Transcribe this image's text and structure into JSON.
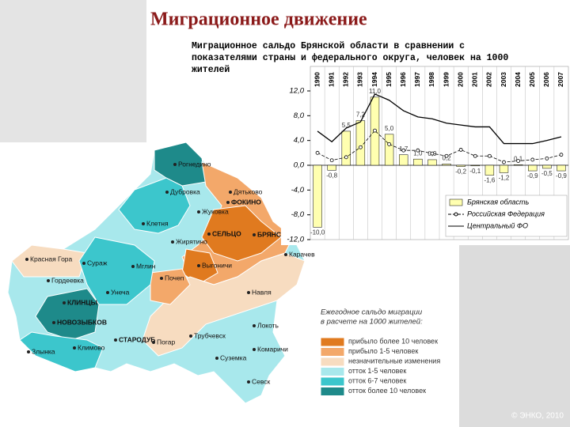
{
  "title": "Миграционное движение",
  "subtitle": [
    "Миграционное сальдо Брянской области в сравнении с",
    "показателями страны и федерального округа, человек на 1000",
    "жителей"
  ],
  "chart_data": {
    "type": "bar",
    "categories": [
      "1990",
      "1991",
      "1992",
      "1993",
      "1994",
      "1995",
      "1996",
      "1997",
      "1998",
      "1999",
      "2000",
      "2001",
      "2002",
      "2003",
      "2004",
      "2005",
      "2006",
      "2007"
    ],
    "series": [
      {
        "name": "Брянская область",
        "type": "bar",
        "color": "#ffffb0",
        "values": [
          -10.0,
          -0.8,
          5.5,
          7.2,
          11.0,
          5.0,
          1.7,
          1.0,
          0.9,
          0.2,
          -0.2,
          -0.1,
          -1.6,
          -1.2,
          0.1,
          -0.9,
          -0.5,
          -0.9
        ],
        "value_labels": [
          "-10,0",
          "-0,8",
          "5,5",
          "7,2",
          "11,0",
          "5,0",
          "1,7",
          "1,0",
          "0,9",
          "0,2",
          "-0,2",
          "-0,1",
          "-1,6",
          "-1,2",
          "0,1",
          "-0,9",
          "-0,5",
          "-0,9"
        ]
      },
      {
        "name": "Российская Федерация",
        "type": "line",
        "style": "dashed",
        "marker": "circle",
        "color": "#000000",
        "values": [
          2.0,
          0.8,
          1.3,
          2.9,
          5.6,
          3.4,
          2.4,
          2.4,
          1.9,
          1.5,
          2.5,
          1.5,
          1.5,
          0.5,
          0.7,
          0.9,
          1.1,
          1.7
        ]
      },
      {
        "name": "Центральный ФО",
        "type": "line",
        "style": "solid",
        "color": "#000000",
        "values": [
          5.5,
          3.8,
          6.0,
          7.0,
          11.5,
          10.5,
          8.8,
          7.8,
          7.5,
          6.8,
          6.5,
          6.2,
          6.2,
          3.5,
          3.5,
          3.5,
          4.0,
          4.6
        ]
      }
    ],
    "ylim": [
      -12,
      12
    ],
    "yticks": [
      {
        "value": 12,
        "label": "12,0"
      },
      {
        "value": 8,
        "label": "8,0"
      },
      {
        "value": 4,
        "label": "4,0"
      },
      {
        "value": 0,
        "label": "0,0"
      },
      {
        "value": -4,
        "label": "-4,0"
      },
      {
        "value": -8,
        "label": "-8,0"
      },
      {
        "value": -12,
        "label": "-12,0"
      }
    ],
    "grid": false
  },
  "map": {
    "districts": [
      "Рогнедино",
      "Дубровка",
      "Дятьково",
      "ФОКИНО",
      "Жуковка",
      "Клетня",
      "БРЯНСК",
      "СЕЛЬЦО",
      "Жирятино",
      "Красная Гора",
      "Сураж",
      "Мглин",
      "Выгоничи",
      "Карачев",
      "Гордеевка",
      "Почеп",
      "Унеча",
      "Навля",
      "КЛИНЦЫ",
      "НОВОЗЫБКОВ",
      "СТАРОДУБ",
      "Трубчевск",
      "Погар",
      "Локоть",
      "Суземка",
      "Комаричи",
      "Злынка",
      "Климово",
      "Севск"
    ],
    "legend": {
      "title": [
        "Ежегодное сальдо миграции",
        "в расчете на 1000 жителей:"
      ],
      "items": [
        {
          "label": "прибыло более 10 человек",
          "color": "#e07a1f"
        },
        {
          "label": "прибыло 1-5 человек",
          "color": "#f3a86a"
        },
        {
          "label": "незначительные изменения",
          "color": "#f7dcc0"
        },
        {
          "label": "отток 1-5 человек",
          "color": "#a8e8ec"
        },
        {
          "label": "отток 6-7 человек",
          "color": "#3cc6cc"
        },
        {
          "label": "отток более 10 человек",
          "color": "#1e8a8a"
        }
      ]
    }
  },
  "copyright": "© ЭНКО, 2010"
}
